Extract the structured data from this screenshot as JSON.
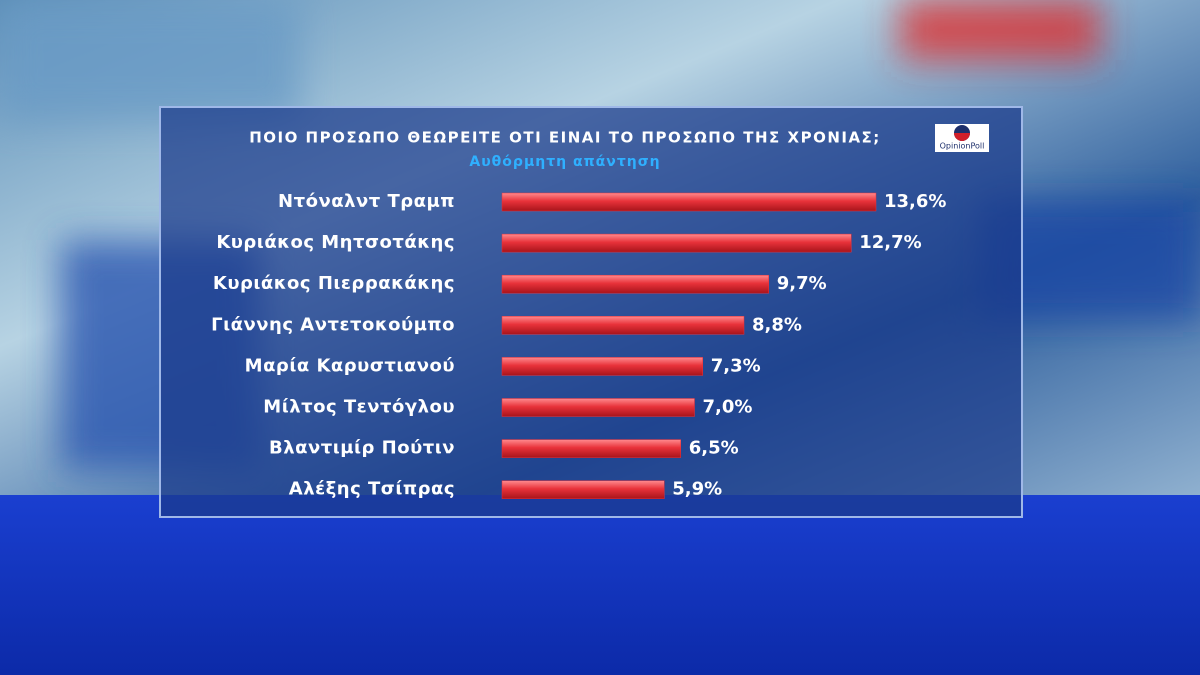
{
  "chart_data": {
    "type": "bar",
    "title": "ΠΟΙΟ ΠΡΟΣΩΠΟ ΘΕΩΡΕΙΤΕ ΟΤΙ ΕΙΝΑΙ ΤΟ ΠΡΟΣΩΠΟ ΤΗΣ ΧΡΟΝΙΑΣ;",
    "subtitle": "Αυθόρμητη απάντηση",
    "logo": "OpinionPoll",
    "categories": [
      "Ντόναλντ Τραμπ",
      "Κυριάκος Μητσοτάκης",
      "Κυριάκος Πιερρακάκης",
      "Γιάννης Αντετοκούμπο",
      "Μαρία Καρυστιανού",
      "Μίλτος Τεντόγλου",
      "Βλαντιμίρ Πούτιν",
      "Αλέξης Τσίπρας"
    ],
    "values": [
      13.6,
      12.7,
      9.7,
      8.8,
      7.3,
      7.0,
      6.5,
      5.9
    ],
    "value_labels": [
      "13,6%",
      "12,7%",
      "9,7%",
      "8,8%",
      "7,3%",
      "7,0%",
      "6,5%",
      "5,9%"
    ],
    "color": "#e8323a"
  }
}
